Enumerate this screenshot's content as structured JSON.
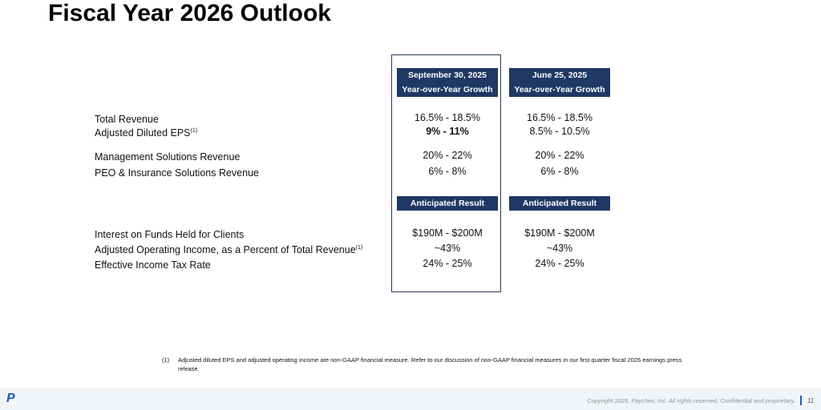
{
  "title": "Fiscal Year 2026 Outlook",
  "columns": [
    {
      "date": "September 30, 2025",
      "sub": "Year-over-Year Growth",
      "section2": "Anticipated Result"
    },
    {
      "date": "June 25, 2025",
      "sub": "Year-over-Year Growth",
      "section2": "Anticipated Result"
    }
  ],
  "rows": [
    {
      "label": "Total Revenue",
      "sup": "",
      "v1": "16.5% - 18.5%",
      "v2": "16.5% - 18.5%"
    },
    {
      "label": "Adjusted Diluted EPS",
      "sup": "(1)",
      "v1": "9% - 11%",
      "v2": "8.5% - 10.5%"
    },
    {
      "label": "Management Solutions Revenue",
      "sup": "",
      "v1": "20% - 22%",
      "v2": "20% - 22%"
    },
    {
      "label": "PEO & Insurance Solutions Revenue",
      "sup": "",
      "v1": "6% - 8%",
      "v2": "6% - 8%"
    },
    {
      "label": "Interest on Funds Held for Clients",
      "sup": "",
      "v1": "$190M - $200M",
      "v2": "$190M - $200M"
    },
    {
      "label": "Adjusted Operating Income, as a Percent of Total Revenue",
      "sup": "(1)",
      "v1": "~43%",
      "v2": "~43%"
    },
    {
      "label": "Effective Income Tax Rate",
      "sup": "",
      "v1": "24% - 25%",
      "v2": "24% - 25%"
    }
  ],
  "footnote": {
    "num": "(1)",
    "text": "Adjusted diluted EPS and adjusted operating income are non-GAAP financial measure. Refer to our discussion of non-GAAP financial measures in our first quarter fiscal 2026 earnings press release."
  },
  "footer": {
    "logo": "P",
    "copyright": "Copyright 2025, Paychex, Inc. All rights reserved. Confidential and proprietary.",
    "page": "11"
  }
}
